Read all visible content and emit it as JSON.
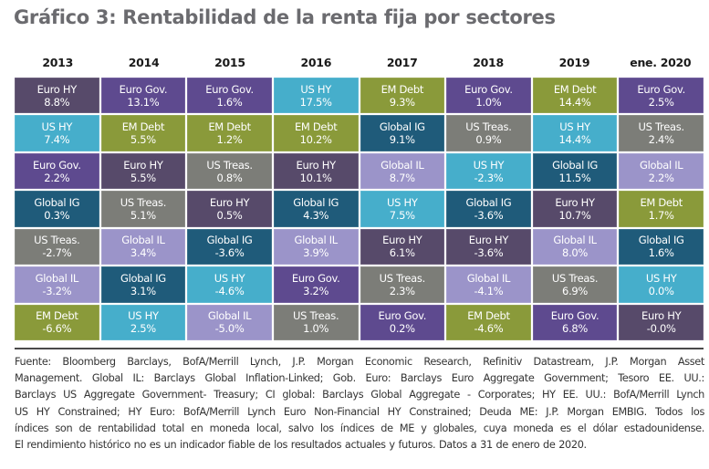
{
  "title": "Gráfico 3: Rentabilidad de la renta fija por sectores",
  "chart_data": {
    "type": "table",
    "title": "Gráfico 3: Rentabilidad de la renta fija por sectores",
    "description": "Quilt chart: each column ranks bond sectors by total return for that period, highest at top.",
    "columns": [
      "2013",
      "2014",
      "2015",
      "2016",
      "2017",
      "2018",
      "2019",
      "ene. 2020"
    ],
    "unit": "%",
    "sector_colors": {
      "Euro HY": "#574a6a",
      "Euro Gov.": "#5e4a8f",
      "US HY": "#46aecb",
      "EM Debt": "#8a9a3a",
      "Global IG": "#1f5b7a",
      "US Treas.": "#7c7d78",
      "Global IL": "#9b94c9"
    },
    "rankings": [
      [
        {
          "sector": "Euro HY",
          "value": "8.8%"
        },
        {
          "sector": "US HY",
          "value": "7.4%"
        },
        {
          "sector": "Euro Gov.",
          "value": "2.2%"
        },
        {
          "sector": "Global IG",
          "value": "0.3%"
        },
        {
          "sector": "US Treas.",
          "value": "-2.7%"
        },
        {
          "sector": "Global IL",
          "value": "-3.2%"
        },
        {
          "sector": "EM Debt",
          "value": "-6.6%"
        }
      ],
      [
        {
          "sector": "Euro Gov.",
          "value": "13.1%"
        },
        {
          "sector": "EM Debt",
          "value": "5.5%"
        },
        {
          "sector": "Euro HY",
          "value": "5.5%"
        },
        {
          "sector": "US Treas.",
          "value": "5.1%"
        },
        {
          "sector": "Global IL",
          "value": "3.4%"
        },
        {
          "sector": "Global IG",
          "value": "3.1%"
        },
        {
          "sector": "US HY",
          "value": "2.5%"
        }
      ],
      [
        {
          "sector": "Euro Gov.",
          "value": "1.6%"
        },
        {
          "sector": "EM Debt",
          "value": "1.2%"
        },
        {
          "sector": "US Treas.",
          "value": "0.8%"
        },
        {
          "sector": "Euro HY",
          "value": "0.5%"
        },
        {
          "sector": "Global IG",
          "value": "-3.6%"
        },
        {
          "sector": "US HY",
          "value": "-4.6%"
        },
        {
          "sector": "Global IL",
          "value": "-5.0%"
        }
      ],
      [
        {
          "sector": "US HY",
          "value": "17.5%"
        },
        {
          "sector": "EM Debt",
          "value": "10.2%"
        },
        {
          "sector": "Euro HY",
          "value": "10.1%"
        },
        {
          "sector": "Global IG",
          "value": "4.3%"
        },
        {
          "sector": "Global IL",
          "value": "3.9%"
        },
        {
          "sector": "Euro Gov.",
          "value": "3.2%"
        },
        {
          "sector": "US Treas.",
          "value": "1.0%"
        }
      ],
      [
        {
          "sector": "EM Debt",
          "value": "9.3%"
        },
        {
          "sector": "Global IG",
          "value": "9.1%"
        },
        {
          "sector": "Global IL",
          "value": "8.7%"
        },
        {
          "sector": "US HY",
          "value": "7.5%"
        },
        {
          "sector": "Euro HY",
          "value": "6.1%"
        },
        {
          "sector": "US Treas.",
          "value": "2.3%"
        },
        {
          "sector": "Euro Gov.",
          "value": "0.2%"
        }
      ],
      [
        {
          "sector": "Euro Gov.",
          "value": "1.0%"
        },
        {
          "sector": "US Treas.",
          "value": "0.9%"
        },
        {
          "sector": "US HY",
          "value": "-2.3%"
        },
        {
          "sector": "Global IG",
          "value": "-3.6%"
        },
        {
          "sector": "Euro HY",
          "value": "-3.6%"
        },
        {
          "sector": "Global IL",
          "value": "-4.1%"
        },
        {
          "sector": "EM Debt",
          "value": "-4.6%"
        }
      ],
      [
        {
          "sector": "EM Debt",
          "value": "14.4%"
        },
        {
          "sector": "US HY",
          "value": "14.4%"
        },
        {
          "sector": "Global IG",
          "value": "11.5%"
        },
        {
          "sector": "Euro HY",
          "value": "10.7%"
        },
        {
          "sector": "Global IL",
          "value": "8.0%"
        },
        {
          "sector": "US Treas.",
          "value": "6.9%"
        },
        {
          "sector": "Euro Gov.",
          "value": "6.8%"
        }
      ],
      [
        {
          "sector": "Euro Gov.",
          "value": "2.5%"
        },
        {
          "sector": "US Treas.",
          "value": "2.4%"
        },
        {
          "sector": "Global IL",
          "value": "2.2%"
        },
        {
          "sector": "EM Debt",
          "value": "1.7%"
        },
        {
          "sector": "Global IG",
          "value": "1.6%"
        },
        {
          "sector": "US HY",
          "value": "0.0%"
        },
        {
          "sector": "Euro HY",
          "value": "-0.0%"
        }
      ]
    ]
  },
  "footnote": {
    "lines": [
      "Fuente: Bloomberg Barclays, BofA/Merrill Lynch, J.P. Morgan Economic Research, Refinitiv Datastream, J.P. Morgan Asset",
      "Management. Global IL: Barclays Global Inflation-Linked; Gob. Euro: Barclays Euro Aggregate Government; Tesoro EE. UU.:",
      "Barclays US Aggregate Government- Treasury; CI global: Barclays Global Aggregate - Corporates; HY EE. UU.: BofA/Merrill Lynch",
      "US HY Constrained; HY Euro: BofA/Merrill Lynch Euro Non-Financial HY Constrained; Deuda ME: J.P. Morgan EMBIG. Todos los",
      "índices son de rentabilidad total en moneda local, salvo los índices de ME y globales, cuya moneda es el dólar estadounidense.",
      "El rendimiento histórico no es un indicador fiable de los resultados actuales y futuros. Datos a 31 de enero de 2020."
    ]
  }
}
